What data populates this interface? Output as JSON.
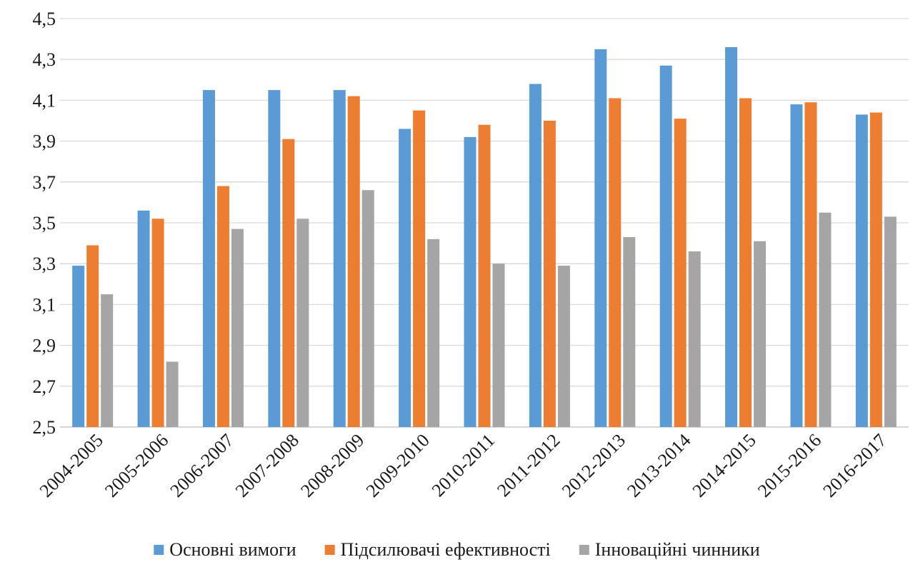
{
  "chart_data": {
    "type": "bar",
    "title": "",
    "xlabel": "",
    "ylabel": "",
    "ylim": [
      2.5,
      4.5
    ],
    "y_ticks": [
      "2,5",
      "2,7",
      "2,9",
      "3,1",
      "3,3",
      "3,5",
      "3,7",
      "3,9",
      "4,1",
      "4,3",
      "4,5"
    ],
    "y_tick_values": [
      2.5,
      2.7,
      2.9,
      3.1,
      3.3,
      3.5,
      3.7,
      3.9,
      4.1,
      4.3,
      4.5
    ],
    "grid": true,
    "legend_position": "bottom",
    "categories": [
      "2004-2005",
      "2005-2006",
      "2006-2007",
      "2007-2008",
      "2008-2009",
      "2009-2010",
      "2010-2011",
      "2011-2012",
      "2012-2013",
      "2013-2014",
      "2014-2015",
      "2015-2016",
      "2016-2017"
    ],
    "series": [
      {
        "name": "Основні вимоги",
        "color": "#5b9bd5",
        "values": [
          3.29,
          3.56,
          4.15,
          4.15,
          4.15,
          3.96,
          3.92,
          4.18,
          4.35,
          4.27,
          4.36,
          4.08,
          4.03
        ]
      },
      {
        "name": "Підсилювачі ефективності",
        "color": "#ed7d31",
        "values": [
          3.39,
          3.52,
          3.68,
          3.91,
          4.12,
          4.05,
          3.98,
          4.0,
          4.11,
          4.01,
          4.11,
          4.09,
          4.04
        ]
      },
      {
        "name": "Інноваційні чинники",
        "color": "#a5a5a5",
        "values": [
          3.15,
          2.82,
          3.47,
          3.52,
          3.66,
          3.42,
          3.3,
          3.29,
          3.43,
          3.36,
          3.41,
          3.55,
          3.53
        ]
      }
    ]
  }
}
